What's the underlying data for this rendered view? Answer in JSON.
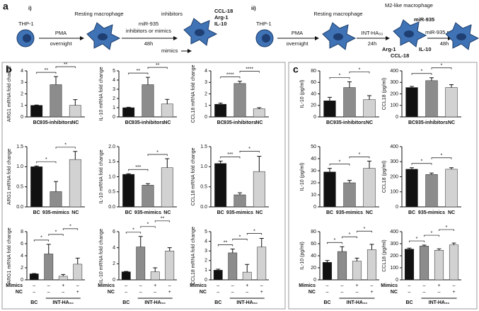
{
  "panel_labels": [
    "a",
    "b",
    "c"
  ],
  "diagram": {
    "i": {
      "label": "i)",
      "thp": "THP-1",
      "pma": "PMA",
      "overnight": "overnight",
      "resting": "Resting macrophage",
      "treat1": "miR-935",
      "treat2": "inhibitors or mimics",
      "time": "48h",
      "inhibitors": "inhibitors",
      "ccl": "CCL-18",
      "arg": "Arg-1",
      "il": "IL-10",
      "mimics": "mimics"
    },
    "ii": {
      "label": "ii)",
      "thp": "THP-1",
      "pma": "PMA",
      "overnight": "overnight",
      "resting": "Resting macrophage",
      "treat": "INT-HA₅₀",
      "time": "24h",
      "m2": "M2-like macrophage",
      "mir": "miR-935",
      "arg": "Arg-1",
      "ccl": "CCL-18",
      "il": "IL-10",
      "treat2": "miR-935 mimics",
      "time2": "48h"
    }
  },
  "chart_data": [
    {
      "type": "bar",
      "ylabel": "ARG1 mRNA fold change",
      "categories": [
        "BC",
        "935-inhibitors",
        "NC"
      ],
      "values": [
        1.0,
        2.8,
        1.0
      ],
      "errors": [
        0.03,
        0.7,
        0.5
      ],
      "colors": [
        "#111111",
        "#8c8c8c",
        "#d2d2d2"
      ],
      "ylim": [
        0,
        4
      ],
      "yticks": [
        0,
        1,
        2,
        3,
        4
      ],
      "significance": [
        {
          "pair": [
            0,
            1
          ],
          "label": "**"
        },
        {
          "pair": [
            1,
            2
          ],
          "label": "**"
        }
      ]
    },
    {
      "type": "bar",
      "ylabel": "IL-10 mRNA fold change",
      "categories": [
        "BC",
        "935-inhibitors",
        "NC"
      ],
      "values": [
        1.0,
        3.5,
        1.4
      ],
      "errors": [
        0.05,
        0.8,
        0.5
      ],
      "colors": [
        "#111111",
        "#8c8c8c",
        "#d2d2d2"
      ],
      "ylim": [
        0,
        5
      ],
      "yticks": [
        0,
        1,
        2,
        3,
        4,
        5
      ],
      "significance": [
        {
          "pair": [
            0,
            1
          ],
          "label": "**"
        },
        {
          "pair": [
            1,
            2
          ],
          "label": "**"
        }
      ]
    },
    {
      "type": "bar",
      "ylabel": "CCL18 mRNA fold change",
      "categories": [
        "BC",
        "935-inhibitors",
        "NC"
      ],
      "values": [
        1.1,
        2.9,
        0.7
      ],
      "errors": [
        0.1,
        0.2,
        0.1
      ],
      "colors": [
        "#111111",
        "#8c8c8c",
        "#d2d2d2"
      ],
      "ylim": [
        0,
        4
      ],
      "yticks": [
        0,
        1,
        2,
        3,
        4
      ],
      "significance": [
        {
          "pair": [
            0,
            1
          ],
          "label": "****"
        },
        {
          "pair": [
            1,
            2
          ],
          "label": "****"
        }
      ]
    },
    {
      "type": "bar",
      "ylabel": "ARG1 mRNA fold change",
      "categories": [
        "BC",
        "935-mimics",
        "NC"
      ],
      "values": [
        1.0,
        0.38,
        1.18
      ],
      "errors": [
        0.02,
        0.25,
        0.2
      ],
      "colors": [
        "#111111",
        "#8c8c8c",
        "#d2d2d2"
      ],
      "ylim": [
        0,
        1.5
      ],
      "yticks": [
        {
          "value": 0,
          "label": "0.0"
        },
        {
          "value": 0.5,
          "label": "0.5"
        },
        {
          "value": 1,
          "label": "1.0"
        },
        {
          "value": 1.5,
          "label": "1.5"
        }
      ],
      "significance": [
        {
          "pair": [
            0,
            1
          ],
          "label": "*"
        },
        {
          "pair": [
            1,
            2
          ],
          "label": "*"
        }
      ]
    },
    {
      "type": "bar",
      "ylabel": "IL-10 mRNA fold change",
      "categories": [
        "BC",
        "935-mimics",
        "NC"
      ],
      "values": [
        1.08,
        0.72,
        1.3
      ],
      "errors": [
        0.02,
        0.05,
        0.3
      ],
      "colors": [
        "#111111",
        "#8c8c8c",
        "#d2d2d2"
      ],
      "ylim": [
        0,
        2
      ],
      "yticks": [
        {
          "value": 0,
          "label": "0.0"
        },
        {
          "value": 0.5,
          "label": "0.5"
        },
        {
          "value": 1,
          "label": "1.0"
        },
        {
          "value": 1.5,
          "label": "1.5"
        },
        {
          "value": 2,
          "label": "2.0"
        }
      ],
      "significance": [
        {
          "pair": [
            0,
            1
          ],
          "label": "***"
        },
        {
          "pair": [
            1,
            2
          ],
          "label": "*"
        }
      ]
    },
    {
      "type": "bar",
      "ylabel": "CCL18 mRNA fold change",
      "categories": [
        "BC",
        "935-mimics",
        "NC"
      ],
      "values": [
        1.08,
        0.3,
        0.88
      ],
      "errors": [
        0.06,
        0.05,
        0.38
      ],
      "colors": [
        "#111111",
        "#8c8c8c",
        "#d2d2d2"
      ],
      "ylim": [
        0,
        1.5
      ],
      "yticks": [
        {
          "value": 0,
          "label": "0.0"
        },
        {
          "value": 0.5,
          "label": "0.5"
        },
        {
          "value": 1,
          "label": "1.0"
        },
        {
          "value": 1.5,
          "label": "1.5"
        }
      ],
      "significance": [
        {
          "pair": [
            0,
            1
          ],
          "label": "***"
        },
        {
          "pair": [
            1,
            2
          ],
          "label": "*"
        }
      ]
    },
    {
      "type": "bar",
      "ylabel": "ARG1 mRNA fold change",
      "categories": [
        null,
        null,
        null,
        null
      ],
      "values": [
        1.0,
        4.3,
        0.6,
        2.6
      ],
      "errors": [
        0.05,
        1.6,
        0.3,
        1.0
      ],
      "colors": [
        "#111111",
        "#8c8c8c",
        "#d2d2d2",
        "#d2d2d2"
      ],
      "ylim": [
        0,
        8
      ],
      "yticks": [
        0,
        2,
        4,
        6,
        8
      ],
      "significance": [
        {
          "pair": [
            0,
            1
          ],
          "label": "*"
        },
        {
          "pair": [
            1,
            2
          ],
          "label": "*"
        },
        {
          "pair": [
            2,
            3
          ],
          "label": "*"
        }
      ],
      "table": {
        "rows": [
          {
            "label": "Mimics",
            "cells": [
              "–",
              "–",
              "+",
              "–"
            ]
          },
          {
            "label": "NC",
            "cells": [
              "–",
              "–",
              "–",
              "+"
            ]
          }
        ],
        "groups": [
          {
            "label": "BC",
            "span": [
              0,
              0
            ]
          },
          {
            "label": "INT-HA₅₀",
            "span": [
              1,
              3
            ]
          }
        ]
      }
    },
    {
      "type": "bar",
      "ylabel": "IL-10 mRNA fold change",
      "categories": [
        null,
        null,
        null,
        null
      ],
      "values": [
        1.0,
        4.1,
        1.0,
        3.6
      ],
      "errors": [
        0.05,
        1.3,
        0.5,
        0.4
      ],
      "colors": [
        "#111111",
        "#8c8c8c",
        "#d2d2d2",
        "#d2d2d2"
      ],
      "ylim": [
        0,
        6
      ],
      "yticks": [
        0,
        2,
        4,
        6
      ],
      "significance": [
        {
          "pair": [
            0,
            1
          ],
          "label": "*"
        },
        {
          "pair": [
            1,
            2
          ],
          "label": "*"
        },
        {
          "pair": [
            2,
            3
          ],
          "label": "**"
        }
      ],
      "table": {
        "rows": [
          {
            "label": "Mimics",
            "cells": [
              "–",
              "–",
              "+",
              "–"
            ]
          },
          {
            "label": "NC",
            "cells": [
              "–",
              "–",
              "–",
              "+"
            ]
          }
        ],
        "groups": [
          {
            "label": "BC",
            "span": [
              0,
              0
            ]
          },
          {
            "label": "INT-HA₅₀",
            "span": [
              1,
              3
            ]
          }
        ]
      }
    },
    {
      "type": "bar",
      "ylabel": "CCL18 mRNA fold change",
      "categories": [
        null,
        null,
        null,
        null
      ],
      "values": [
        1.0,
        2.8,
        0.8,
        3.4
      ],
      "errors": [
        0.1,
        0.4,
        0.8,
        0.9
      ],
      "colors": [
        "#111111",
        "#8c8c8c",
        "#d2d2d2",
        "#d2d2d2"
      ],
      "ylim": [
        0,
        5
      ],
      "yticks": [
        0,
        1,
        2,
        3,
        4,
        5
      ],
      "significance": [
        {
          "pair": [
            0,
            1
          ],
          "label": "**"
        },
        {
          "pair": [
            1,
            2
          ],
          "label": "*"
        },
        {
          "pair": [
            2,
            3
          ],
          "label": "*"
        }
      ],
      "table": {
        "rows": [
          {
            "label": "Mimics",
            "cells": [
              "–",
              "–",
              "+",
              "–"
            ]
          },
          {
            "label": "NC",
            "cells": [
              "–",
              "–",
              "–",
              "+"
            ]
          }
        ],
        "groups": [
          {
            "label": "BC",
            "span": [
              0,
              0
            ]
          },
          {
            "label": "INT-HA₅₀",
            "span": [
              1,
              3
            ]
          }
        ]
      }
    },
    {
      "type": "bar",
      "ylabel": "IL-10 (pg/ml)",
      "categories": [
        "BC",
        "935-inhibitors",
        "NC"
      ],
      "values": [
        28,
        51,
        30
      ],
      "errors": [
        6,
        10,
        7
      ],
      "colors": [
        "#111111",
        "#8c8c8c",
        "#d2d2d2"
      ],
      "ylim": [
        0,
        80
      ],
      "yticks": [
        0,
        20,
        40,
        60,
        80
      ],
      "significance": [
        {
          "pair": [
            0,
            1
          ],
          "label": "*"
        },
        {
          "pair": [
            1,
            2
          ],
          "label": "*"
        }
      ]
    },
    {
      "type": "bar",
      "ylabel": "CCL18 (pg/ml)",
      "categories": [
        "BC",
        "935-inhibitors",
        "NC"
      ],
      "values": [
        255,
        315,
        255
      ],
      "errors": [
        10,
        25,
        25
      ],
      "colors": [
        "#111111",
        "#8c8c8c",
        "#d2d2d2"
      ],
      "ylim": [
        0,
        400
      ],
      "yticks": [
        0,
        100,
        200,
        300,
        400
      ],
      "significance": [
        {
          "pair": [
            0,
            1
          ],
          "label": "*"
        },
        {
          "pair": [
            1,
            2
          ],
          "label": "*"
        }
      ]
    },
    {
      "type": "bar",
      "ylabel": "IL-10 (pg/ml)",
      "categories": [
        "BC",
        "935-mimics",
        "NC"
      ],
      "values": [
        29,
        20,
        32
      ],
      "errors": [
        3,
        2,
        6
      ],
      "colors": [
        "#111111",
        "#8c8c8c",
        "#d2d2d2"
      ],
      "ylim": [
        0,
        50
      ],
      "yticks": [
        0,
        10,
        20,
        30,
        40,
        50
      ],
      "significance": [
        {
          "pair": [
            0,
            1
          ],
          "label": "*"
        },
        {
          "pair": [
            1,
            2
          ],
          "label": "*"
        }
      ]
    },
    {
      "type": "bar",
      "ylabel": "CCL18 (pg/ml)",
      "categories": [
        "BC",
        "935-mimics",
        "NC"
      ],
      "values": [
        250,
        215,
        250
      ],
      "errors": [
        10,
        10,
        10
      ],
      "colors": [
        "#111111",
        "#8c8c8c",
        "#d2d2d2"
      ],
      "ylim": [
        0,
        400
      ],
      "yticks": [
        0,
        100,
        200,
        300,
        400
      ],
      "significance": [
        {
          "pair": [
            0,
            1
          ],
          "label": "*"
        },
        {
          "pair": [
            1,
            2
          ],
          "label": "*"
        }
      ]
    },
    {
      "type": "bar",
      "ylabel": "IL-10 (pg/ml)",
      "categories": [
        null,
        null,
        null,
        null
      ],
      "values": [
        29,
        47,
        31,
        50
      ],
      "errors": [
        3,
        8,
        5,
        9
      ],
      "colors": [
        "#111111",
        "#8c8c8c",
        "#d2d2d2",
        "#d2d2d2"
      ],
      "ylim": [
        0,
        80
      ],
      "yticks": [
        0,
        20,
        40,
        60,
        80
      ],
      "significance": [
        {
          "pair": [
            0,
            1
          ],
          "label": "*"
        },
        {
          "pair": [
            1,
            2
          ],
          "label": "*"
        },
        {
          "pair": [
            2,
            3
          ],
          "label": "*"
        }
      ],
      "table": {
        "rows": [
          {
            "label": "Mimics",
            "cells": [
              "–",
              "–",
              "+",
              "–"
            ]
          },
          {
            "label": "NC",
            "cells": [
              "–",
              "–",
              "–",
              "+"
            ]
          }
        ],
        "groups": [
          {
            "label": "BC",
            "span": [
              0,
              0
            ]
          },
          {
            "label": "INT-HA₅₀",
            "span": [
              1,
              3
            ]
          }
        ]
      }
    },
    {
      "type": "bar",
      "ylabel": "CCL18 (pg/ml)",
      "categories": [
        null,
        null,
        null,
        null
      ],
      "values": [
        255,
        280,
        245,
        290
      ],
      "errors": [
        8,
        8,
        12,
        15
      ],
      "colors": [
        "#111111",
        "#8c8c8c",
        "#d2d2d2",
        "#d2d2d2"
      ],
      "ylim": [
        0,
        400
      ],
      "yticks": [
        0,
        100,
        200,
        300,
        400
      ],
      "significance": [
        {
          "pair": [
            0,
            1
          ],
          "label": "*"
        },
        {
          "pair": [
            1,
            2
          ],
          "label": "*"
        },
        {
          "pair": [
            2,
            3
          ],
          "label": "*"
        }
      ],
      "table": {
        "rows": [
          {
            "label": "Mimics",
            "cells": [
              "–",
              "–",
              "+",
              "–"
            ]
          },
          {
            "label": "NC",
            "cells": [
              "–",
              "–",
              "–",
              "+"
            ]
          }
        ],
        "groups": [
          {
            "label": "BC",
            "span": [
              0,
              0
            ]
          },
          {
            "label": "INT-HA₅₀",
            "span": [
              1,
              3
            ]
          }
        ]
      }
    }
  ]
}
